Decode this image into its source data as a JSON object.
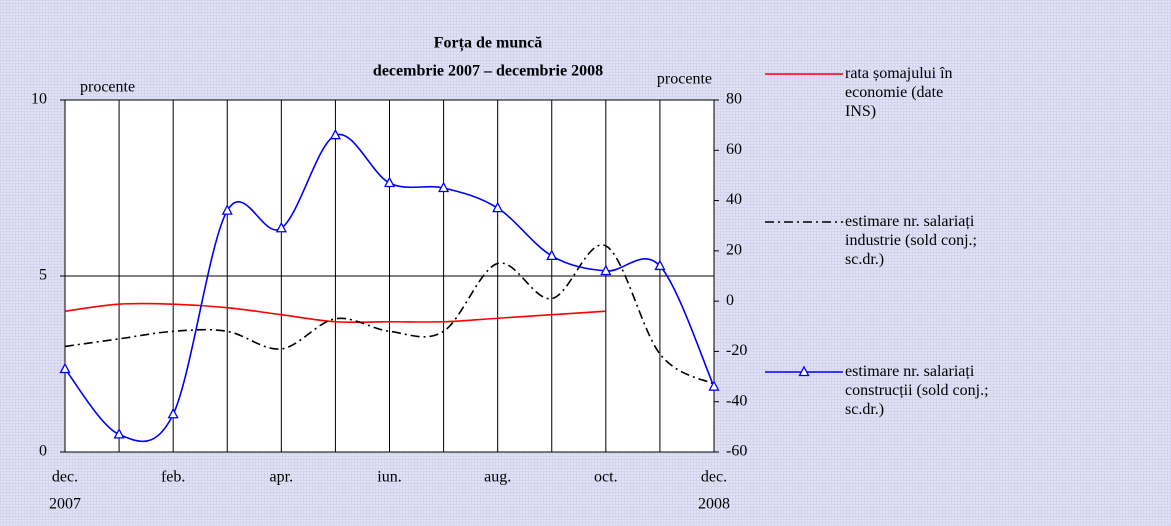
{
  "chart_data": {
    "type": "line",
    "title": "Forța de muncă",
    "subtitle": "decembrie 2007 – decembrie 2008",
    "ylabel": "procente",
    "y2label": "procente",
    "categories": [
      "dec.",
      null,
      "feb.",
      null,
      "apr.",
      null,
      "iun.",
      null,
      "aug.",
      null,
      "oct.",
      null,
      "dec."
    ],
    "years": [
      "2007",
      null,
      null,
      null,
      null,
      null,
      null,
      null,
      null,
      null,
      null,
      null,
      "2008"
    ],
    "ylim": [
      0,
      10
    ],
    "yticks": [
      0,
      5,
      10
    ],
    "y2lim": [
      -60,
      80
    ],
    "y2ticks": [
      -60,
      -40,
      -20,
      0,
      20,
      40,
      60,
      80
    ],
    "grid": true,
    "series": [
      {
        "name": "rata șomajului în economie (date INS)",
        "color": "#ff0000",
        "style": "solid",
        "values": [
          4.0,
          4.2,
          4.2,
          4.1,
          3.9,
          3.7,
          3.7,
          3.7,
          3.8,
          3.9,
          4.0,
          null,
          null
        ]
      },
      {
        "name": "estimare nr. salariați industrie (sold conj.; sc.dr.)",
        "color": "#000000",
        "style": "dashdot",
        "axis": "y2",
        "values": [
          -18,
          -15,
          -12,
          -12,
          -19,
          -7,
          -12,
          -12,
          15,
          1,
          22,
          -21,
          -33
        ]
      },
      {
        "name": "estimare nr. salariați construcții (sold conj.; sc.dr.)",
        "color": "#0000ff",
        "style": "solid",
        "marker": "triangle",
        "axis": "y2",
        "values": [
          -27,
          -53,
          -45,
          36,
          29,
          66,
          47,
          45,
          37,
          18,
          12,
          14,
          -34
        ]
      }
    ]
  }
}
